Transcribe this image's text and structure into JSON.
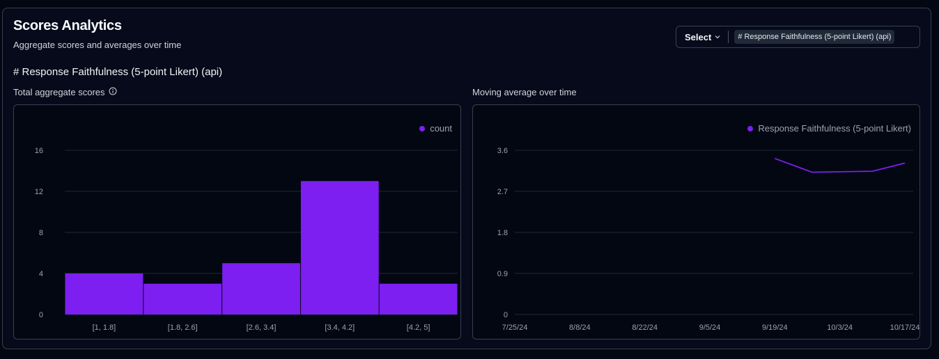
{
  "header": {
    "title": "Scores Analytics",
    "subtitle": "Aggregate scores and averages over time"
  },
  "selector": {
    "select_label": "Select",
    "selected_tag": "# Response Faithfulness (5-point Likert) (api)"
  },
  "score_heading": "# Response Faithfulness (5-point Likert) (api)",
  "colors": {
    "accent": "#7c1ff0",
    "grid": "#1f2937",
    "border": "#374151"
  },
  "chart_data": [
    {
      "type": "bar",
      "label": "Total aggregate scores",
      "categories": [
        "[1, 1.8]",
        "[1.8, 2.6]",
        "[2.6, 3.4]",
        "[3.4, 4.2]",
        "[4.2, 5]"
      ],
      "series": [
        {
          "name": "count",
          "values": [
            4,
            3,
            5,
            13,
            3
          ]
        }
      ],
      "yticks": [
        "0",
        "4",
        "8",
        "12",
        "16"
      ],
      "ylim": [
        0,
        16
      ],
      "legend": "top-right",
      "grid": true
    },
    {
      "type": "line",
      "label": "Moving average over time",
      "xticks": [
        "7/25/24",
        "8/8/24",
        "8/22/24",
        "9/5/24",
        "9/19/24",
        "10/3/24",
        "10/17/24"
      ],
      "series": [
        {
          "name": "Response Faithfulness (5-point Likert)",
          "x": [
            "9/19/24",
            "9/27/24",
            "10/10/24",
            "10/17/24"
          ],
          "values": [
            3.42,
            3.12,
            3.14,
            3.32
          ]
        }
      ],
      "yticks": [
        "0",
        "0.9",
        "1.8",
        "2.7",
        "3.6"
      ],
      "ylim": [
        0,
        3.6
      ],
      "legend": "top-right",
      "grid": true
    }
  ]
}
